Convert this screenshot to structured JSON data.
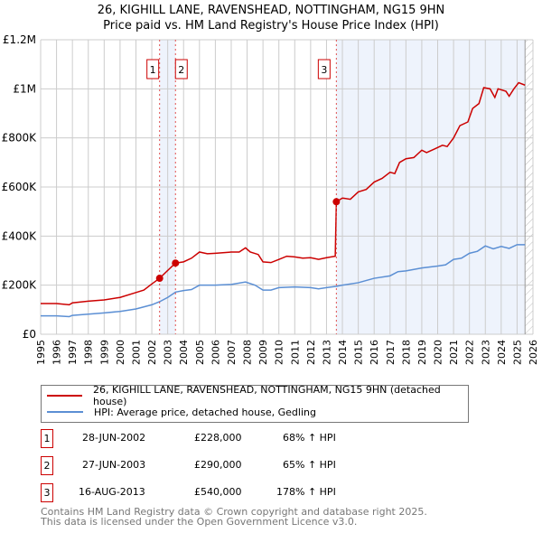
{
  "chart_data": {
    "type": "line",
    "title": "26, KIGHILL LANE, RAVENSHEAD, NOTTINGHAM, NG15 9HN",
    "subtitle": "Price paid vs. HM Land Registry's House Price Index (HPI)",
    "ylim": [
      0,
      1200000
    ],
    "xlim": [
      1995,
      2026
    ],
    "yticks": [
      {
        "v": 0,
        "label": "£0"
      },
      {
        "v": 200000,
        "label": "£200K"
      },
      {
        "v": 400000,
        "label": "£400K"
      },
      {
        "v": 600000,
        "label": "£600K"
      },
      {
        "v": 800000,
        "label": "£800K"
      },
      {
        "v": 1000000,
        "label": "£1M"
      },
      {
        "v": 1200000,
        "label": "£1.2M"
      }
    ],
    "xticks": [
      "1995",
      "1996",
      "1997",
      "1998",
      "1999",
      "2000",
      "2001",
      "2002",
      "2003",
      "2004",
      "2005",
      "2006",
      "2007",
      "2008",
      "2009",
      "2010",
      "2011",
      "2012",
      "2013",
      "2014",
      "2015",
      "2016",
      "2017",
      "2018",
      "2019",
      "2020",
      "2021",
      "2022",
      "2023",
      "2024",
      "2025",
      "2026"
    ],
    "grid": true,
    "series": [
      {
        "name": "26, KIGHILL LANE, RAVENSHEAD, NOTTINGHAM, NG15 9HN (detached house)",
        "color": "#cc0000",
        "x": [
          1995,
          1996,
          1996.8,
          1997,
          1998,
          1999,
          2000,
          2001,
          2001.5,
          2002,
          2002.49,
          2003,
          2003.49,
          2004,
          2004.5,
          2005,
          2005.5,
          2006,
          2007,
          2007.5,
          2007.9,
          2008.2,
          2008.7,
          2009,
          2009.5,
          2010,
          2010.5,
          2011,
          2011.5,
          2012,
          2012.5,
          2013,
          2013.55,
          2013.62,
          2014,
          2014.5,
          2015,
          2015.5,
          2016,
          2016.5,
          2017,
          2017.3,
          2017.6,
          2018,
          2018.5,
          2019,
          2019.3,
          2019.8,
          2020.3,
          2020.6,
          2021,
          2021.4,
          2021.9,
          2022.2,
          2022.6,
          2022.9,
          2023.3,
          2023.6,
          2023.8,
          2024.3,
          2024.5,
          2024.8,
          2025.1,
          2025.5
        ],
        "y": [
          125000,
          125000,
          120000,
          128000,
          135000,
          140000,
          150000,
          170000,
          180000,
          205000,
          228000,
          260000,
          290000,
          295000,
          310000,
          335000,
          328000,
          330000,
          335000,
          335000,
          352000,
          335000,
          325000,
          295000,
          292000,
          305000,
          318000,
          315000,
          310000,
          312000,
          305000,
          312000,
          318000,
          540000,
          555000,
          550000,
          580000,
          590000,
          620000,
          635000,
          660000,
          655000,
          700000,
          715000,
          720000,
          750000,
          740000,
          755000,
          770000,
          765000,
          800000,
          850000,
          865000,
          920000,
          940000,
          1005000,
          1000000,
          965000,
          1000000,
          990000,
          970000,
          1000000,
          1025000,
          1015000
        ]
      },
      {
        "name": "HPI: Average price, detached house, Gedling",
        "color": "#5b8fd4",
        "x": [
          1995,
          1996,
          1996.8,
          1997,
          1998,
          1999,
          2000,
          2001,
          2002,
          2002.5,
          2003,
          2003.5,
          2004,
          2004.5,
          2005,
          2006,
          2007,
          2007.9,
          2008.5,
          2009,
          2009.5,
          2010,
          2011,
          2012,
          2012.5,
          2013,
          2013.6,
          2014,
          2015,
          2016,
          2017,
          2017.5,
          2018,
          2019,
          2020,
          2020.5,
          2021,
          2021.5,
          2022,
          2022.5,
          2023,
          2023.5,
          2024,
          2024.5,
          2025,
          2025.5
        ],
        "y": [
          75000,
          75000,
          72000,
          77000,
          82000,
          87000,
          93000,
          103000,
          120000,
          133000,
          150000,
          172000,
          178000,
          182000,
          200000,
          200000,
          203000,
          213000,
          200000,
          180000,
          180000,
          190000,
          193000,
          190000,
          185000,
          190000,
          195000,
          200000,
          210000,
          228000,
          238000,
          255000,
          258000,
          270000,
          278000,
          283000,
          305000,
          310000,
          330000,
          338000,
          360000,
          348000,
          358000,
          350000,
          365000,
          365000
        ]
      }
    ],
    "sales": [
      {
        "id": "1",
        "x": 2002.49,
        "y": 228000,
        "date": "28-JUN-2002",
        "price": "£228,000",
        "hpi": "68% ↑ HPI"
      },
      {
        "id": "2",
        "x": 2003.49,
        "y": 290000,
        "date": "27-JUN-2003",
        "price": "£290,000",
        "hpi": "65% ↑ HPI"
      },
      {
        "id": "3",
        "x": 2013.62,
        "y": 540000,
        "date": "16-AUG-2013",
        "price": "£540,000",
        "hpi": "178% ↑ HPI"
      }
    ],
    "shaded_ranges": [
      [
        2002.49,
        2003.49
      ],
      [
        2013.62,
        2025.5
      ]
    ],
    "hatched_from": 2025.5
  },
  "footer": {
    "line1": "Contains HM Land Registry data © Crown copyright and database right 2025.",
    "line2": "This data is licensed under the Open Government Licence v3.0."
  }
}
